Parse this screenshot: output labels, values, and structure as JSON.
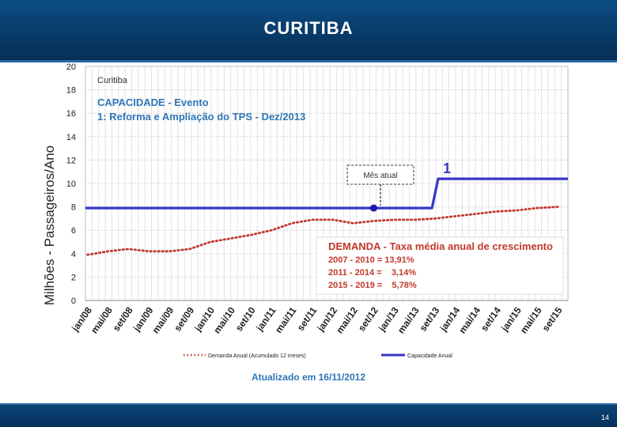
{
  "slide": {
    "title": "CURITIBA",
    "page_number": "14"
  },
  "chart_data": {
    "type": "line",
    "ylabel": "Milhões - Passageiros/Ano",
    "ylim": [
      0,
      20
    ],
    "yticks": [
      0,
      2,
      4,
      6,
      8,
      10,
      12,
      14,
      16,
      18,
      20
    ],
    "xtick_labels": [
      "jan/08",
      "mai/08",
      "set/08",
      "jan/09",
      "mai/09",
      "set/09",
      "jan/10",
      "mai/10",
      "set/10",
      "jan/11",
      "mai/11",
      "set/11",
      "jan/12",
      "mai/12",
      "set/12",
      "jan/13",
      "mai/13",
      "set/13",
      "jan/14",
      "mai/14",
      "set/14",
      "jan/15",
      "mai/15",
      "set/15"
    ],
    "inner_title": "Curitiba",
    "capacity_title_line1": "CAPACIDADE - Evento",
    "capacity_title_line2": "1: Reforma e Ampliação do TPS - Dez/2013",
    "current_month_label": "Mês atual",
    "event_marker_label": "1",
    "demand_box": {
      "title": "DEMANDA - Taxa média anual de crescimento",
      "lines": [
        "2007 - 2010 = 13,91%",
        "2011 - 2014 =    3,14%",
        "2015 - 2019 =    5,78%"
      ]
    },
    "updated_note": "Atualizado em 16/11/2012",
    "series": [
      {
        "name": "Demanda Anual (Acumulado 12 meses)",
        "style": "dotted",
        "color": "#c0392b",
        "points": [
          [
            "jan/08",
            3.9
          ],
          [
            "mai/08",
            4.2
          ],
          [
            "set/08",
            4.4
          ],
          [
            "jan/09",
            4.2
          ],
          [
            "mai/09",
            4.2
          ],
          [
            "set/09",
            4.4
          ],
          [
            "jan/10",
            5.0
          ],
          [
            "mai/10",
            5.3
          ],
          [
            "set/10",
            5.6
          ],
          [
            "jan/11",
            6.0
          ],
          [
            "mai/11",
            6.6
          ],
          [
            "set/11",
            6.9
          ],
          [
            "jan/12",
            6.9
          ],
          [
            "mai/12",
            6.6
          ],
          [
            "set/12",
            6.8
          ],
          [
            "jan/13",
            6.9
          ],
          [
            "mai/13",
            6.9
          ],
          [
            "set/13",
            7.0
          ],
          [
            "jan/14",
            7.2
          ],
          [
            "mai/14",
            7.4
          ],
          [
            "set/14",
            7.6
          ],
          [
            "jan/15",
            7.7
          ],
          [
            "mai/15",
            7.9
          ],
          [
            "set/15",
            8.0
          ]
        ]
      },
      {
        "name": "Capacidade Anual",
        "style": "solid",
        "color": "#3636c8",
        "points": [
          [
            "jan/08",
            7.9
          ],
          [
            "set/13",
            7.9
          ],
          [
            "set/13",
            10.4
          ],
          [
            "set/15",
            10.4
          ]
        ]
      }
    ],
    "current_point": {
      "x": "set/12",
      "y": 7.9
    },
    "grid": true,
    "legend_position": "bottom"
  }
}
